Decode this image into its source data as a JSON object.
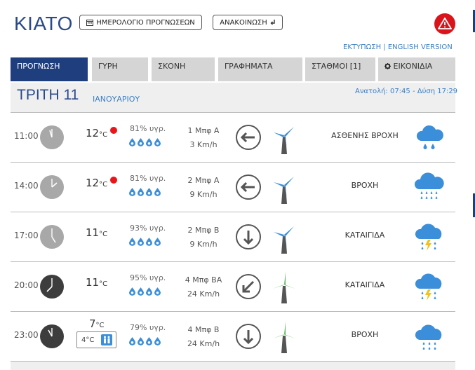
{
  "header": {
    "city": "ΚΙΑΤΟ",
    "calendar_button": "ΗΜΕΡΟΛΟΓΙΟ ΠΡΟΓΝΩΣΕΩΝ",
    "announcement_button": "ΑΝΑΚΟΙΝΩΣΗ",
    "print_link": "ΕΚΤΥΠΩΣΗ",
    "separator": "|",
    "english_link": "ENGLISH VERSION"
  },
  "tabs": [
    {
      "label": "ΠΡΟΓΝΩΣΗ"
    },
    {
      "label": "ΓΥΡΗ"
    },
    {
      "label": "ΣΚΟΝΗ"
    },
    {
      "label": "ΓΡΑΦΗΜΑΤΑ"
    },
    {
      "label": "ΣΤΑΘΜΟΙ [1]"
    },
    {
      "label": "ΕΙΚΟΝΙΔΙΑ"
    }
  ],
  "day": {
    "name": "ΤΡΙΤΗ 11",
    "month": "ΙΑΝΟΥΑΡΙΟΥ",
    "sun": "Ανατολή: 07:45 - Δύση 17:29"
  },
  "forecast": [
    {
      "time": "11:00",
      "temp": "12",
      "unit": "°C",
      "humidity": "81% υγρ.",
      "wind_bf": "1 Μπφ Α",
      "wind_speed": "3 Km/h",
      "condition": "ΑΣΘΕΝΗΣ ΒΡΟΧΗ"
    },
    {
      "time": "14:00",
      "temp": "12",
      "unit": "°C",
      "humidity": "81% υγρ.",
      "wind_bf": "2 Μπφ Α",
      "wind_speed": "9 Km/h",
      "condition": "ΒΡΟΧΗ"
    },
    {
      "time": "17:00",
      "temp": "11",
      "unit": "°C",
      "humidity": "93% υγρ.",
      "wind_bf": "2 Μπφ Β",
      "wind_speed": "9 Km/h",
      "condition": "ΚΑΤΑΙΓΙΔΑ"
    },
    {
      "time": "20:00",
      "temp": "11",
      "unit": "°C",
      "humidity": "95% υγρ.",
      "wind_bf": "4 Μπφ ΒΑ",
      "wind_speed": "24 Km/h",
      "condition": "ΚΑΤΑΙΓΙΔΑ"
    },
    {
      "time": "23:00",
      "temp": "7",
      "unit": "°C",
      "feels_like": "4°C",
      "humidity": "79% υγρ.",
      "wind_bf": "4 Μπφ Β",
      "wind_speed": "24 Km/h",
      "condition": "ΒΡΟΧΗ"
    }
  ],
  "colors": {
    "brand_blue": "#1e3e7e",
    "link_blue": "#3b7fc4",
    "alert_red": "#d9141b",
    "icon_blue": "#3b8ed9",
    "lightning_yellow": "#f2c21b"
  }
}
